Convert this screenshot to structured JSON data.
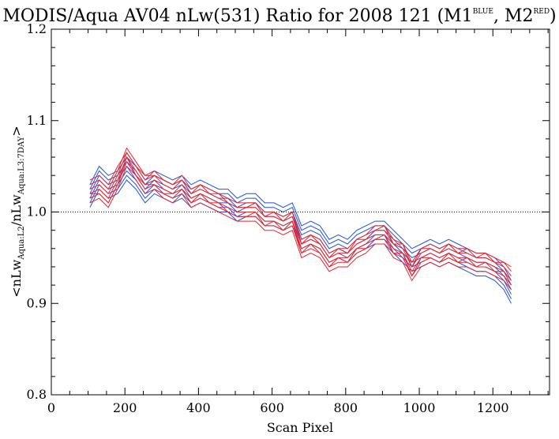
{
  "chart_data": {
    "type": "line",
    "title": {
      "main": "MODIS/Aqua AV04 nLw(531) Ratio for 2008 121 (M1",
      "sup1": "BLUE",
      "mid": ", M2",
      "sup2": "RED",
      "end": ")"
    },
    "xlabel": "Scan Pixel",
    "ylabel": {
      "open": "<nLw",
      "sub1": "Aqua:L2",
      "slash": "/nLw",
      "sub2": "Aqua:L3:7DAY",
      "close": ">"
    },
    "xlim": [
      0,
      1354
    ],
    "ylim": [
      0.8,
      1.2
    ],
    "x_ticks": [
      0,
      200,
      400,
      600,
      800,
      1000,
      1200
    ],
    "y_ticks": [
      0.8,
      0.9,
      1.0,
      1.1,
      1.2
    ],
    "x_tick_labels": [
      "0",
      "200",
      "400",
      "600",
      "800",
      "1000",
      "1200"
    ],
    "y_tick_labels": [
      "0.8",
      "0.9",
      "1.0",
      "1.1",
      "1.2"
    ],
    "reference_line": {
      "y": 1.0,
      "style": "dotted"
    },
    "grid": false,
    "x": [
      105,
      130,
      155,
      180,
      205,
      230,
      255,
      280,
      305,
      330,
      355,
      380,
      405,
      430,
      455,
      480,
      505,
      530,
      555,
      580,
      605,
      630,
      655,
      680,
      705,
      730,
      755,
      780,
      805,
      830,
      855,
      880,
      905,
      930,
      955,
      980,
      1005,
      1030,
      1055,
      1080,
      1105,
      1130,
      1155,
      1180,
      1205,
      1230,
      1250
    ],
    "colors": {
      "M1": "#1f4fe6",
      "M2": "#e8242a"
    },
    "series": [
      {
        "group": "M1",
        "values": [
          1.015,
          1.035,
          1.025,
          1.03,
          1.045,
          1.035,
          1.02,
          1.03,
          1.025,
          1.02,
          1.025,
          1.015,
          1.02,
          1.015,
          1.01,
          1.01,
          1.0,
          1.005,
          1.005,
          0.995,
          0.995,
          0.99,
          0.995,
          0.97,
          0.975,
          0.97,
          0.955,
          0.96,
          0.955,
          0.965,
          0.97,
          0.975,
          0.975,
          0.965,
          0.955,
          0.945,
          0.95,
          0.955,
          0.95,
          0.955,
          0.95,
          0.945,
          0.94,
          0.94,
          0.935,
          0.925,
          0.91
        ]
      },
      {
        "group": "M1",
        "values": [
          1.02,
          1.04,
          1.03,
          1.035,
          1.05,
          1.04,
          1.025,
          1.035,
          1.03,
          1.025,
          1.03,
          1.02,
          1.025,
          1.02,
          1.015,
          1.015,
          1.005,
          1.01,
          1.01,
          1.0,
          1.0,
          0.995,
          1.0,
          0.975,
          0.98,
          0.975,
          0.96,
          0.965,
          0.96,
          0.97,
          0.975,
          0.98,
          0.98,
          0.97,
          0.96,
          0.95,
          0.955,
          0.96,
          0.955,
          0.96,
          0.955,
          0.95,
          0.945,
          0.945,
          0.94,
          0.93,
          0.915
        ]
      },
      {
        "group": "M1",
        "values": [
          1.025,
          1.045,
          1.035,
          1.04,
          1.055,
          1.045,
          1.03,
          1.04,
          1.035,
          1.03,
          1.035,
          1.025,
          1.03,
          1.025,
          1.02,
          1.02,
          1.01,
          1.015,
          1.015,
          1.005,
          1.005,
          1.0,
          1.005,
          0.98,
          0.985,
          0.98,
          0.965,
          0.97,
          0.965,
          0.975,
          0.98,
          0.985,
          0.985,
          0.975,
          0.965,
          0.955,
          0.96,
          0.965,
          0.96,
          0.965,
          0.96,
          0.955,
          0.95,
          0.95,
          0.945,
          0.935,
          0.92
        ]
      },
      {
        "group": "M1",
        "values": [
          1.03,
          1.05,
          1.04,
          1.045,
          1.06,
          1.05,
          1.035,
          1.045,
          1.04,
          1.035,
          1.04,
          1.03,
          1.035,
          1.03,
          1.025,
          1.025,
          1.015,
          1.02,
          1.02,
          1.01,
          1.01,
          1.005,
          1.01,
          0.985,
          0.99,
          0.985,
          0.97,
          0.975,
          0.97,
          0.98,
          0.985,
          0.99,
          0.99,
          0.98,
          0.97,
          0.96,
          0.965,
          0.97,
          0.965,
          0.97,
          0.965,
          0.96,
          0.955,
          0.955,
          0.95,
          0.94,
          0.925
        ]
      },
      {
        "group": "M1",
        "values": [
          1.01,
          1.03,
          1.02,
          1.025,
          1.04,
          1.03,
          1.015,
          1.025,
          1.02,
          1.015,
          1.02,
          1.01,
          1.015,
          1.01,
          1.005,
          1.005,
          0.995,
          1.0,
          1.0,
          0.99,
          0.99,
          0.985,
          0.99,
          0.965,
          0.97,
          0.965,
          0.95,
          0.955,
          0.95,
          0.96,
          0.965,
          0.97,
          0.97,
          0.96,
          0.95,
          0.94,
          0.945,
          0.95,
          0.945,
          0.95,
          0.945,
          0.94,
          0.935,
          0.935,
          0.93,
          0.92,
          0.905
        ]
      },
      {
        "group": "M1",
        "values": [
          1.005,
          1.025,
          1.015,
          1.02,
          1.035,
          1.025,
          1.01,
          1.02,
          1.015,
          1.01,
          1.015,
          1.005,
          1.01,
          1.005,
          1.0,
          1.0,
          0.99,
          0.995,
          0.995,
          0.985,
          0.985,
          0.98,
          0.985,
          0.96,
          0.965,
          0.96,
          0.945,
          0.95,
          0.945,
          0.955,
          0.96,
          0.965,
          0.965,
          0.955,
          0.945,
          0.935,
          0.94,
          0.945,
          0.94,
          0.945,
          0.94,
          0.935,
          0.93,
          0.93,
          0.925,
          0.915,
          0.9
        ]
      },
      {
        "group": "M2",
        "values": [
          1.02,
          1.025,
          1.015,
          1.035,
          1.06,
          1.045,
          1.03,
          1.035,
          1.025,
          1.02,
          1.03,
          1.015,
          1.02,
          1.015,
          1.01,
          1.005,
          1.0,
          1.0,
          1.0,
          0.99,
          0.99,
          0.985,
          0.99,
          0.96,
          0.965,
          0.96,
          0.945,
          0.95,
          0.95,
          0.96,
          0.965,
          0.975,
          0.975,
          0.96,
          0.955,
          0.935,
          0.95,
          0.955,
          0.95,
          0.955,
          0.95,
          0.95,
          0.945,
          0.945,
          0.94,
          0.935,
          0.925
        ]
      },
      {
        "group": "M2",
        "values": [
          1.025,
          1.03,
          1.02,
          1.04,
          1.065,
          1.05,
          1.035,
          1.04,
          1.03,
          1.025,
          1.035,
          1.02,
          1.025,
          1.02,
          1.015,
          1.01,
          1.005,
          1.005,
          1.005,
          0.995,
          0.995,
          0.99,
          0.995,
          0.965,
          0.97,
          0.965,
          0.95,
          0.955,
          0.955,
          0.965,
          0.97,
          0.98,
          0.98,
          0.965,
          0.96,
          0.94,
          0.955,
          0.96,
          0.955,
          0.96,
          0.955,
          0.955,
          0.95,
          0.95,
          0.945,
          0.94,
          0.93
        ]
      },
      {
        "group": "M2",
        "values": [
          1.015,
          1.02,
          1.01,
          1.03,
          1.055,
          1.04,
          1.025,
          1.03,
          1.02,
          1.015,
          1.025,
          1.01,
          1.015,
          1.01,
          1.005,
          1.0,
          0.995,
          0.995,
          0.995,
          0.985,
          0.985,
          0.98,
          0.985,
          0.955,
          0.96,
          0.955,
          0.94,
          0.945,
          0.945,
          0.955,
          0.96,
          0.97,
          0.97,
          0.955,
          0.95,
          0.93,
          0.945,
          0.95,
          0.945,
          0.95,
          0.945,
          0.945,
          0.94,
          0.94,
          0.935,
          0.93,
          0.92
        ]
      },
      {
        "group": "M2",
        "values": [
          1.03,
          1.035,
          1.025,
          1.045,
          1.07,
          1.055,
          1.04,
          1.045,
          1.035,
          1.03,
          1.04,
          1.025,
          1.03,
          1.025,
          1.02,
          1.015,
          1.01,
          1.01,
          1.01,
          1.0,
          1.0,
          0.995,
          1.0,
          0.97,
          0.975,
          0.97,
          0.955,
          0.96,
          0.96,
          0.97,
          0.975,
          0.985,
          0.985,
          0.97,
          0.965,
          0.945,
          0.96,
          0.965,
          0.96,
          0.965,
          0.96,
          0.96,
          0.955,
          0.955,
          0.95,
          0.945,
          0.94
        ]
      },
      {
        "group": "M2",
        "values": [
          1.01,
          1.015,
          1.005,
          1.025,
          1.05,
          1.035,
          1.02,
          1.025,
          1.015,
          1.01,
          1.02,
          1.005,
          1.01,
          1.005,
          1.0,
          0.995,
          0.99,
          0.99,
          0.99,
          0.98,
          0.98,
          0.975,
          0.98,
          0.95,
          0.955,
          0.95,
          0.935,
          0.94,
          0.94,
          0.95,
          0.955,
          0.965,
          0.965,
          0.95,
          0.945,
          0.925,
          0.94,
          0.945,
          0.94,
          0.945,
          0.94,
          0.94,
          0.935,
          0.935,
          0.93,
          0.925,
          0.915
        ]
      },
      {
        "group": "M2",
        "values": [
          1.02,
          1.02,
          1.01,
          1.03,
          1.06,
          1.04,
          1.03,
          1.03,
          1.02,
          1.02,
          1.025,
          1.01,
          1.02,
          1.01,
          1.01,
          1.0,
          0.995,
          0.995,
          1.0,
          0.985,
          0.99,
          0.98,
          0.99,
          0.955,
          0.965,
          0.955,
          0.94,
          0.95,
          0.945,
          0.96,
          0.96,
          0.97,
          0.975,
          0.955,
          0.955,
          0.93,
          0.95,
          0.95,
          0.945,
          0.955,
          0.945,
          0.95,
          0.94,
          0.945,
          0.935,
          0.935,
          0.92
        ]
      },
      {
        "group": "M2",
        "values": [
          1.035,
          1.04,
          1.03,
          1.05,
          1.065,
          1.05,
          1.04,
          1.04,
          1.035,
          1.03,
          1.035,
          1.02,
          1.03,
          1.02,
          1.02,
          1.01,
          1.005,
          1.005,
          1.01,
          0.995,
          1.0,
          0.99,
          1.0,
          0.965,
          0.975,
          0.965,
          0.95,
          0.96,
          0.955,
          0.97,
          0.97,
          0.98,
          0.985,
          0.965,
          0.965,
          0.94,
          0.96,
          0.96,
          0.955,
          0.965,
          0.955,
          0.96,
          0.95,
          0.955,
          0.945,
          0.945,
          0.935
        ]
      }
    ]
  }
}
